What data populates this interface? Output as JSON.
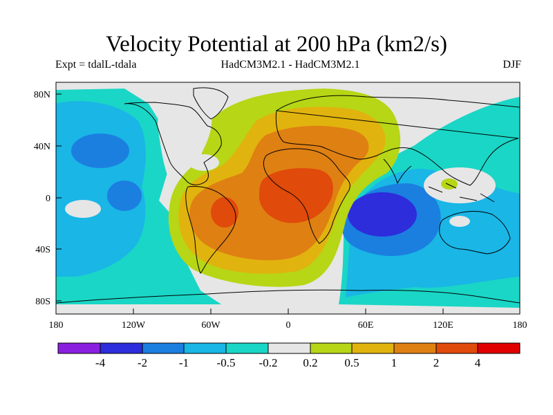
{
  "title": "Velocity Potential at 200 hPa (km2/s)",
  "subtitle_left": "Expt = tdalL-tdala",
  "subtitle_center": "HadCM3M2.1 - HadCM3M2.1",
  "subtitle_right": "DJF",
  "colors": {
    "level_m4_below": "#8a1fe0",
    "level_m4_m2": "#2d2ddb",
    "level_m2_m1": "#1b7fe0",
    "level_m1_m05": "#19b6e6",
    "level_m05_m02": "#1ad6c6",
    "level_m02_02": "#e6e6e6",
    "level_02_05": "#b6d616",
    "level_05_1": "#e1b30e",
    "level_1_2": "#df8013",
    "level_2_4": "#e04a0a",
    "level_4_above": "#e00000",
    "coastline": "#000000"
  },
  "map": {
    "lat_ticks": [
      "80N",
      "40N",
      "0",
      "40S",
      "80S"
    ],
    "lon_ticks": [
      "180",
      "120W",
      "60W",
      "0",
      "60E",
      "120E",
      "180"
    ]
  },
  "colorbar": {
    "labels": [
      "-4",
      "-2",
      "-1",
      "-0.5",
      "-0.2",
      "0.2",
      "0.5",
      "1",
      "2",
      "4"
    ]
  }
}
